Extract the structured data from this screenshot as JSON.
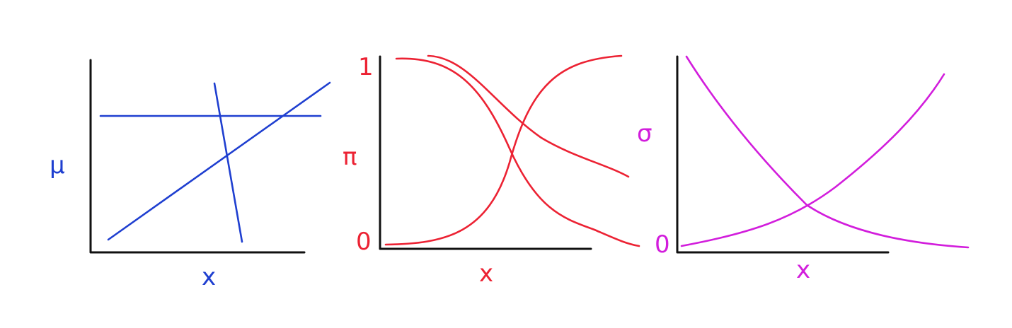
{
  "panels": [
    {
      "color": "#1f3fd0",
      "y_label": "μ",
      "x_label": "x",
      "y_ticks": []
    },
    {
      "color": "#ec2233",
      "y_label": "π",
      "x_label": "x",
      "y_ticks": [
        "1",
        "0"
      ]
    },
    {
      "color": "#d21ddc",
      "y_label": "σ",
      "x_label": "x",
      "y_ticks": [
        "0"
      ]
    }
  ]
}
